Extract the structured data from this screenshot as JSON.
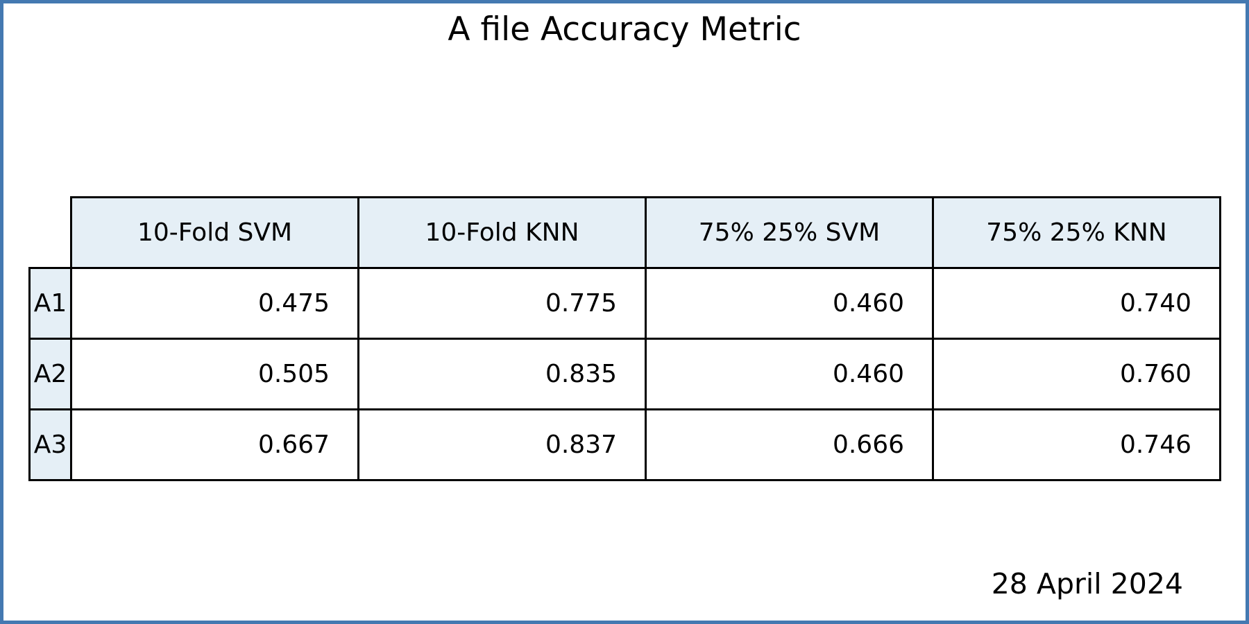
{
  "page": {
    "title": "A file Accuracy Metric",
    "date": "28 April 2024"
  },
  "colors": {
    "frame_border": "#4479b1",
    "header_fill": "#e5eff6",
    "cell_fill": "#ffffff",
    "grid_line": "#000000"
  },
  "chart_data": {
    "type": "table",
    "title": "A file Accuracy Metric",
    "columns": [
      "10-Fold SVM",
      "10-Fold KNN",
      "75% 25% SVM",
      "75% 25% KNN"
    ],
    "rows": [
      {
        "label": "A1",
        "values": [
          "0.475",
          "0.775",
          "0.460",
          "0.740"
        ]
      },
      {
        "label": "A2",
        "values": [
          "0.505",
          "0.835",
          "0.460",
          "0.760"
        ]
      },
      {
        "label": "A3",
        "values": [
          "0.667",
          "0.837",
          "0.666",
          "0.746"
        ]
      }
    ]
  }
}
